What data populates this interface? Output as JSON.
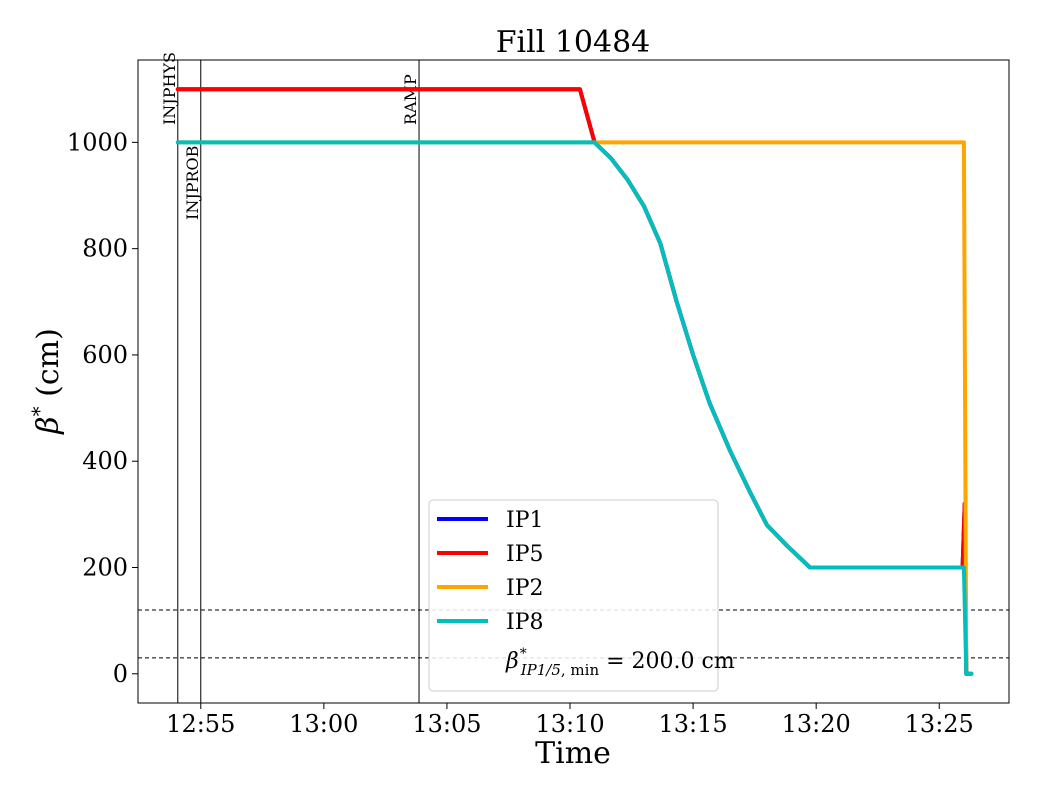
{
  "chart_data": {
    "type": "line",
    "title": "Fill 10484",
    "xlabel": "Time",
    "ylabel_main": "β",
    "ylabel_sup": "*",
    "ylabel_unit": " (cm)",
    "xlim": [
      "12:52:27",
      "13:27:50"
    ],
    "ylim": [
      -55,
      1155
    ],
    "x_ticks": [
      "12:55",
      "13:00",
      "13:05",
      "13:10",
      "13:15",
      "13:20",
      "13:25"
    ],
    "y_ticks": [
      0,
      200,
      400,
      600,
      800,
      1000
    ],
    "grid": false,
    "legend_position": "lower-center",
    "vlines": [
      {
        "label": "INJPHYS",
        "x": "12:54:04"
      },
      {
        "label": "INJPROB",
        "x": "12:55:00"
      },
      {
        "label": "RAMP",
        "x": "13:03:52"
      }
    ],
    "hlines": [
      120,
      30
    ],
    "series": [
      {
        "name": "IP1",
        "color": "#0000ff",
        "points": [
          [
            "12:54:04",
            1100
          ],
          [
            "13:10:24",
            1100
          ],
          [
            "13:11:00",
            1000
          ],
          [
            "13:11:40",
            970
          ],
          [
            "13:12:20",
            930
          ],
          [
            "13:13:00",
            880
          ],
          [
            "13:13:40",
            810
          ],
          [
            "13:14:20",
            700
          ],
          [
            "13:15:00",
            600
          ],
          [
            "13:15:40",
            510
          ],
          [
            "13:16:30",
            420
          ],
          [
            "13:17:20",
            340
          ],
          [
            "13:18:00",
            280
          ],
          [
            "13:18:50",
            240
          ],
          [
            "13:19:45",
            200
          ],
          [
            "13:25:57",
            200
          ],
          [
            "13:26:02",
            320
          ],
          [
            "13:26:06",
            0
          ],
          [
            "13:26:18",
            0
          ]
        ]
      },
      {
        "name": "IP5",
        "color": "#ff0000",
        "points": [
          [
            "12:54:04",
            1100
          ],
          [
            "13:10:24",
            1100
          ],
          [
            "13:11:00",
            1000
          ],
          [
            "13:11:40",
            970
          ],
          [
            "13:12:20",
            930
          ],
          [
            "13:13:00",
            880
          ],
          [
            "13:13:40",
            810
          ],
          [
            "13:14:20",
            700
          ],
          [
            "13:15:00",
            600
          ],
          [
            "13:15:40",
            510
          ],
          [
            "13:16:30",
            420
          ],
          [
            "13:17:20",
            340
          ],
          [
            "13:18:00",
            280
          ],
          [
            "13:18:50",
            240
          ],
          [
            "13:19:45",
            200
          ],
          [
            "13:25:57",
            200
          ],
          [
            "13:26:02",
            320
          ],
          [
            "13:26:06",
            0
          ],
          [
            "13:26:18",
            0
          ]
        ]
      },
      {
        "name": "IP2",
        "color": "#ffa500",
        "points": [
          [
            "12:54:04",
            1000
          ],
          [
            "13:26:00",
            1000
          ],
          [
            "13:26:06",
            0
          ],
          [
            "13:26:18",
            0
          ]
        ]
      },
      {
        "name": "IP8",
        "color": "#00bfbf",
        "points": [
          [
            "12:54:04",
            1000
          ],
          [
            "13:11:00",
            1000
          ],
          [
            "13:11:40",
            970
          ],
          [
            "13:12:20",
            930
          ],
          [
            "13:13:00",
            880
          ],
          [
            "13:13:40",
            810
          ],
          [
            "13:14:20",
            700
          ],
          [
            "13:15:00",
            600
          ],
          [
            "13:15:40",
            510
          ],
          [
            "13:16:30",
            420
          ],
          [
            "13:17:20",
            340
          ],
          [
            "13:18:00",
            280
          ],
          [
            "13:18:50",
            240
          ],
          [
            "13:19:45",
            200
          ],
          [
            "13:26:00",
            200
          ],
          [
            "13:26:06",
            0
          ],
          [
            "13:26:18",
            0
          ]
        ]
      }
    ],
    "annotation": {
      "beta": "β",
      "sup": "*",
      "sub_ip": "IP1/5",
      "sub_min": ", min",
      "equals": " = ",
      "value": "200.0 cm"
    }
  }
}
